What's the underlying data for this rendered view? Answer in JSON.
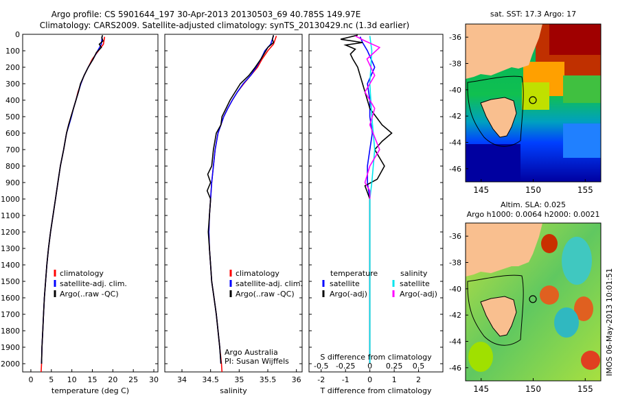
{
  "header": {
    "line1": "Argo profile: CS 5901644_197 30-Apr-2013 20130503_69 40.785S 149.97E",
    "line2": "Climatology: CARS2009. Satellite-adjusted climatology: synTS_20130429.nc (1.3d earlier)"
  },
  "side_stamp": "IMOS 06-May-2013 10:01:51",
  "colors": {
    "climatology": "#ff0000",
    "satellite": "#0000ff",
    "argo": "#000000",
    "sal_satellite": "#00e5ee",
    "sal_argo": "#ff00ff"
  },
  "chart_data": [
    {
      "type": "line",
      "xlabel": "temperature (deg C)",
      "xlim": [
        -2,
        31
      ],
      "xticks": [
        0,
        5,
        10,
        15,
        20,
        25,
        30
      ],
      "ylim": [
        0,
        2050
      ],
      "yticks": [
        0,
        100,
        200,
        300,
        400,
        500,
        600,
        700,
        800,
        900,
        1000,
        1100,
        1200,
        1300,
        1400,
        1500,
        1600,
        1700,
        1800,
        1900,
        2000
      ],
      "legend": [
        "climatology",
        "satellite-adj. clim.",
        "Argo(..raw -QC)"
      ],
      "series": [
        {
          "name": "climatology",
          "color": "#ff0000",
          "points": [
            [
              18,
              15
            ],
            [
              17.7,
              60
            ],
            [
              16.5,
              100
            ],
            [
              15,
              150
            ],
            [
              14,
              200
            ],
            [
              13,
              250
            ],
            [
              12.2,
              300
            ],
            [
              11.5,
              350
            ],
            [
              11,
              400
            ],
            [
              10.4,
              450
            ],
            [
              9.8,
              500
            ],
            [
              9.2,
              550
            ],
            [
              8.7,
              600
            ],
            [
              8,
              700
            ],
            [
              7.2,
              800
            ],
            [
              6.6,
              900
            ],
            [
              6,
              1000
            ],
            [
              5.4,
              1100
            ],
            [
              4.8,
              1200
            ],
            [
              4.3,
              1300
            ],
            [
              3.9,
              1400
            ],
            [
              3.6,
              1500
            ],
            [
              3.3,
              1600
            ],
            [
              3.1,
              1700
            ],
            [
              2.9,
              1800
            ],
            [
              2.7,
              1900
            ],
            [
              2.6,
              2000
            ],
            [
              2.5,
              2050
            ]
          ]
        },
        {
          "name": "satellite-adj. clim.",
          "color": "#0000ff",
          "points": [
            [
              17.4,
              10
            ],
            [
              17.2,
              60
            ],
            [
              16.3,
              100
            ],
            [
              15.2,
              150
            ],
            [
              14,
              200
            ],
            [
              13,
              250
            ],
            [
              12.2,
              300
            ],
            [
              11.6,
              350
            ],
            [
              11,
              400
            ],
            [
              10.4,
              450
            ],
            [
              9.9,
              500
            ],
            [
              9.3,
              550
            ],
            [
              8.7,
              600
            ],
            [
              8,
              700
            ],
            [
              7.2,
              800
            ],
            [
              6.6,
              900
            ],
            [
              6,
              1000
            ],
            [
              5.4,
              1100
            ],
            [
              4.8,
              1200
            ],
            [
              4.3,
              1300
            ],
            [
              3.9,
              1400
            ],
            [
              3.6,
              1500
            ],
            [
              3.3,
              1600
            ],
            [
              3.1,
              1700
            ],
            [
              2.9,
              1800
            ],
            [
              2.7,
              1900
            ],
            [
              2.6,
              2000
            ]
          ]
        },
        {
          "name": "Argo(..raw -QC)",
          "color": "#000000",
          "points": [
            [
              17.5,
              5
            ],
            [
              17.3,
              20
            ],
            [
              17.6,
              40
            ],
            [
              16.7,
              60
            ],
            [
              17.2,
              80
            ],
            [
              16,
              110
            ],
            [
              15.2,
              150
            ],
            [
              14,
              200
            ],
            [
              13,
              250
            ],
            [
              12.1,
              300
            ],
            [
              11.6,
              350
            ],
            [
              11,
              400
            ],
            [
              10.4,
              450
            ],
            [
              9.8,
              500
            ],
            [
              9.2,
              550
            ],
            [
              8.7,
              600
            ],
            [
              8,
              700
            ],
            [
              7.2,
              800
            ],
            [
              6.6,
              900
            ],
            [
              6,
              1000
            ],
            [
              5.4,
              1100
            ],
            [
              4.8,
              1200
            ],
            [
              4.3,
              1300
            ],
            [
              3.9,
              1400
            ],
            [
              3.6,
              1500
            ],
            [
              3.3,
              1600
            ],
            [
              3.1,
              1700
            ],
            [
              2.9,
              1800
            ],
            [
              2.7,
              1900
            ],
            [
              2.6,
              2000
            ]
          ]
        }
      ]
    },
    {
      "type": "line",
      "xlabel": "salinity",
      "xlim": [
        33.7,
        36.1
      ],
      "xticks": [
        34,
        34.5,
        35,
        35.5,
        36
      ],
      "xticklabels": [
        "34",
        "34.5",
        "35",
        "35.5",
        "36"
      ],
      "ylim": [
        0,
        2050
      ],
      "legend": [
        "climatology",
        "satellite-adj. clim.",
        "Argo(..raw -QC)"
      ],
      "annotation": [
        "Argo Australia",
        "PI: Susan Wijffels"
      ],
      "series": [
        {
          "name": "climatology",
          "color": "#ff0000",
          "points": [
            [
              35.65,
              10
            ],
            [
              35.6,
              60
            ],
            [
              35.5,
              100
            ],
            [
              35.4,
              150
            ],
            [
              35.32,
              200
            ],
            [
              35.2,
              250
            ],
            [
              35.08,
              300
            ],
            [
              34.97,
              350
            ],
            [
              34.88,
              400
            ],
            [
              34.8,
              450
            ],
            [
              34.73,
              500
            ],
            [
              34.68,
              550
            ],
            [
              34.63,
              600
            ],
            [
              34.58,
              700
            ],
            [
              34.55,
              800
            ],
            [
              34.52,
              900
            ],
            [
              34.5,
              1000
            ],
            [
              34.48,
              1100
            ],
            [
              34.47,
              1200
            ],
            [
              34.48,
              1300
            ],
            [
              34.5,
              1400
            ],
            [
              34.52,
              1500
            ],
            [
              34.56,
              1600
            ],
            [
              34.6,
              1700
            ],
            [
              34.63,
              1800
            ],
            [
              34.66,
              1900
            ],
            [
              34.69,
              2000
            ],
            [
              34.7,
              2050
            ]
          ]
        },
        {
          "name": "satellite-adj. clim.",
          "color": "#0000ff",
          "points": [
            [
              35.6,
              10
            ],
            [
              35.55,
              60
            ],
            [
              35.45,
              100
            ],
            [
              35.38,
              150
            ],
            [
              35.3,
              200
            ],
            [
              35.2,
              250
            ],
            [
              35.07,
              300
            ],
            [
              34.97,
              350
            ],
            [
              34.88,
              400
            ],
            [
              34.8,
              450
            ],
            [
              34.73,
              500
            ],
            [
              34.68,
              550
            ],
            [
              34.63,
              600
            ],
            [
              34.58,
              700
            ],
            [
              34.55,
              800
            ],
            [
              34.52,
              900
            ],
            [
              34.5,
              1000
            ],
            [
              34.48,
              1100
            ],
            [
              34.47,
              1200
            ],
            [
              34.48,
              1300
            ],
            [
              34.5,
              1400
            ],
            [
              34.52,
              1500
            ],
            [
              34.56,
              1600
            ],
            [
              34.6,
              1700
            ],
            [
              34.63,
              1800
            ],
            [
              34.66,
              1900
            ],
            [
              34.68,
              2000
            ]
          ]
        },
        {
          "name": "Argo(..raw -QC)",
          "color": "#000000",
          "points": [
            [
              35.6,
              5
            ],
            [
              35.58,
              30
            ],
            [
              35.6,
              50
            ],
            [
              35.5,
              80
            ],
            [
              35.45,
              110
            ],
            [
              35.38,
              150
            ],
            [
              35.28,
              200
            ],
            [
              35.17,
              250
            ],
            [
              35.02,
              300
            ],
            [
              34.93,
              350
            ],
            [
              34.84,
              400
            ],
            [
              34.77,
              450
            ],
            [
              34.7,
              500
            ],
            [
              34.68,
              550
            ],
            [
              34.6,
              600
            ],
            [
              34.55,
              700
            ],
            [
              34.52,
              800
            ],
            [
              34.45,
              850
            ],
            [
              34.5,
              900
            ],
            [
              34.44,
              950
            ],
            [
              34.5,
              1000
            ],
            [
              34.48,
              1100
            ],
            [
              34.46,
              1200
            ],
            [
              34.48,
              1300
            ],
            [
              34.5,
              1400
            ],
            [
              34.52,
              1500
            ],
            [
              34.56,
              1600
            ],
            [
              34.6,
              1700
            ],
            [
              34.63,
              1800
            ],
            [
              34.66,
              1900
            ],
            [
              34.68,
              2000
            ]
          ]
        }
      ]
    },
    {
      "type": "line",
      "xlabel": "T difference from climatology",
      "xlabel_top": "S difference from climatology",
      "xlim": [
        -2.5,
        3
      ],
      "xticks": [
        -2,
        -1,
        0,
        1,
        2
      ],
      "top_ticks": [
        -0.5,
        -0.25,
        0,
        0.25,
        0.5
      ],
      "top_ticklabels": [
        "-0.5",
        "-0.25",
        "0",
        "0.25",
        "0.5"
      ],
      "s_scale": 4,
      "ylim": [
        0,
        2050
      ],
      "legend_temperature": {
        "heading": "temperature",
        "items": [
          "satellite",
          "Argo(-adj)"
        ]
      },
      "legend_salinity": {
        "heading": "salinity",
        "items": [
          "satellite",
          "Argo(-adj)"
        ]
      },
      "series": [
        {
          "name": "satellite",
          "group": "temperature",
          "color": "#0000ff",
          "points": [
            [
              -0.4,
              15
            ],
            [
              -0.3,
              50
            ],
            [
              -0.1,
              100
            ],
            [
              0.2,
              200
            ],
            [
              -0.1,
              300
            ],
            [
              0,
              400
            ],
            [
              0,
              500
            ],
            [
              0.1,
              600
            ],
            [
              0,
              700
            ],
            [
              -0.1,
              800
            ],
            [
              -0.1,
              900
            ],
            [
              0,
              1000
            ],
            [
              0,
              1500
            ],
            [
              0,
              2000
            ]
          ]
        },
        {
          "name": "Argo(-adj)",
          "group": "temperature",
          "color": "#000000",
          "points": [
            [
              -0.5,
              5
            ],
            [
              -1.2,
              30
            ],
            [
              -0.3,
              50
            ],
            [
              -1,
              65
            ],
            [
              -0.6,
              90
            ],
            [
              -0.8,
              120
            ],
            [
              -0.7,
              150
            ],
            [
              -0.5,
              200
            ],
            [
              -0.3,
              300
            ],
            [
              0,
              450
            ],
            [
              0.5,
              550
            ],
            [
              0.9,
              600
            ],
            [
              0.5,
              650
            ],
            [
              0.2,
              700
            ],
            [
              0.6,
              800
            ],
            [
              0.3,
              880
            ],
            [
              -0.2,
              920
            ],
            [
              0,
              1000
            ],
            [
              0,
              1500
            ],
            [
              0,
              2000
            ]
          ]
        },
        {
          "name": "satellite",
          "group": "salinity",
          "color": "#00e5ee",
          "points": [
            [
              0,
              10
            ],
            [
              0.02,
              100
            ],
            [
              0,
              300
            ],
            [
              0.02,
              500
            ],
            [
              0.05,
              700
            ],
            [
              0.02,
              900
            ],
            [
              0,
              1000
            ],
            [
              0,
              2000
            ]
          ]
        },
        {
          "name": "Argo(-adj)",
          "group": "salinity",
          "color": "#ff00ff",
          "points": [
            [
              -0.15,
              10
            ],
            [
              -0.05,
              40
            ],
            [
              0.1,
              80
            ],
            [
              -0.03,
              150
            ],
            [
              0.05,
              250
            ],
            [
              -0.05,
              350
            ],
            [
              0.05,
              450
            ],
            [
              0,
              550
            ],
            [
              0.1,
              700
            ],
            [
              0,
              800
            ],
            [
              -0.05,
              900
            ],
            [
              0,
              950
            ],
            [
              0,
              1000
            ]
          ]
        }
      ]
    },
    {
      "type": "heatmap",
      "title": "sat. SST: 17.3 Argo: 17",
      "xlim": [
        143.5,
        156.5
      ],
      "ylim": [
        -47,
        -35
      ],
      "xticks": [
        145,
        150,
        155
      ],
      "yticks": [
        -36,
        -38,
        -40,
        -42,
        -44,
        -46
      ],
      "marker": [
        149.97,
        -40.785
      ]
    },
    {
      "type": "heatmap",
      "title": "Altim. SLA: 0.025",
      "subtitle": "Argo h1000: 0.0064 h2000: 0.0021",
      "xlim": [
        143.5,
        156.5
      ],
      "ylim": [
        -47,
        -35
      ],
      "xticks": [
        145,
        150,
        155
      ],
      "yticks": [
        -36,
        -38,
        -40,
        -42,
        -44,
        -46
      ],
      "marker": [
        149.97,
        -40.785
      ]
    }
  ]
}
